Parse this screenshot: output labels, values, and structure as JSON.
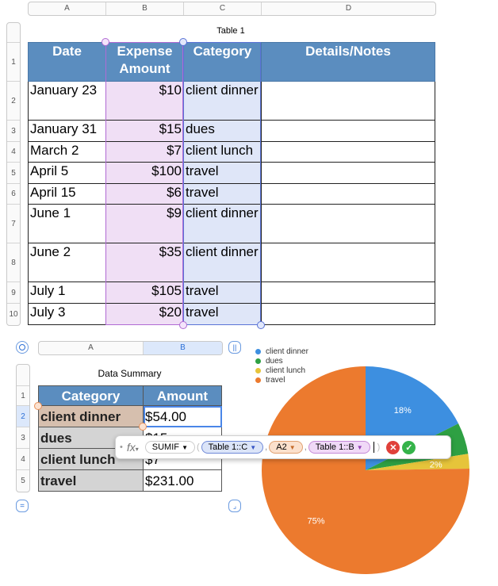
{
  "table1": {
    "title": "Table 1",
    "col_letters": [
      "A",
      "B",
      "C",
      "D"
    ],
    "headers": [
      "Date",
      "Expense Amount",
      "Category",
      "Details/Notes"
    ],
    "row_numbers": [
      "1",
      "2",
      "3",
      "4",
      "5",
      "6",
      "7",
      "8",
      "9",
      "10"
    ],
    "rows": [
      {
        "date": "January 23",
        "amount": "$10",
        "category": "client dinner",
        "notes": ""
      },
      {
        "date": "January 31",
        "amount": "$15",
        "category": "dues",
        "notes": ""
      },
      {
        "date": "March 2",
        "amount": "$7",
        "category": "client lunch",
        "notes": ""
      },
      {
        "date": "April 5",
        "amount": "$100",
        "category": "travel",
        "notes": ""
      },
      {
        "date": "April 15",
        "amount": "$6",
        "category": "travel",
        "notes": ""
      },
      {
        "date": "June 1",
        "amount": "$9",
        "category": "client dinner",
        "notes": ""
      },
      {
        "date": "June 2",
        "amount": "$35",
        "category": "client dinner",
        "notes": ""
      },
      {
        "date": "July 1",
        "amount": "$105",
        "category": "travel",
        "notes": ""
      },
      {
        "date": "July 3",
        "amount": "$20",
        "category": "travel",
        "notes": ""
      }
    ]
  },
  "table2": {
    "title": "Data Summary",
    "col_letters": [
      "A",
      "B"
    ],
    "headers": [
      "Category",
      "Amount"
    ],
    "row_numbers": [
      "1",
      "2",
      "3",
      "4",
      "5"
    ],
    "rows": [
      {
        "category": "client dinner",
        "amount": "$54.00"
      },
      {
        "category": "dues",
        "amount": "$15"
      },
      {
        "category": "client lunch",
        "amount": "$7"
      },
      {
        "category": "travel",
        "amount": "$231.00"
      }
    ]
  },
  "formula": {
    "fx": "fx",
    "func": "SUMIF",
    "arg1": "Table 1::C",
    "arg2": "A2",
    "arg3": "Table 1::B",
    "sep": ","
  },
  "chart_data": {
    "type": "pie",
    "legend_position": "top-left",
    "slices": [
      {
        "name": "client dinner",
        "value": 54,
        "label": "18%",
        "color": "#3d8fe0"
      },
      {
        "name": "dues",
        "value": 15,
        "label": "",
        "color": "#2ea043"
      },
      {
        "name": "client lunch",
        "value": 7,
        "label": "2%",
        "color": "#e6c43a"
      },
      {
        "name": "travel",
        "value": 231,
        "label": "75%",
        "color": "#ec7a2e"
      }
    ]
  }
}
